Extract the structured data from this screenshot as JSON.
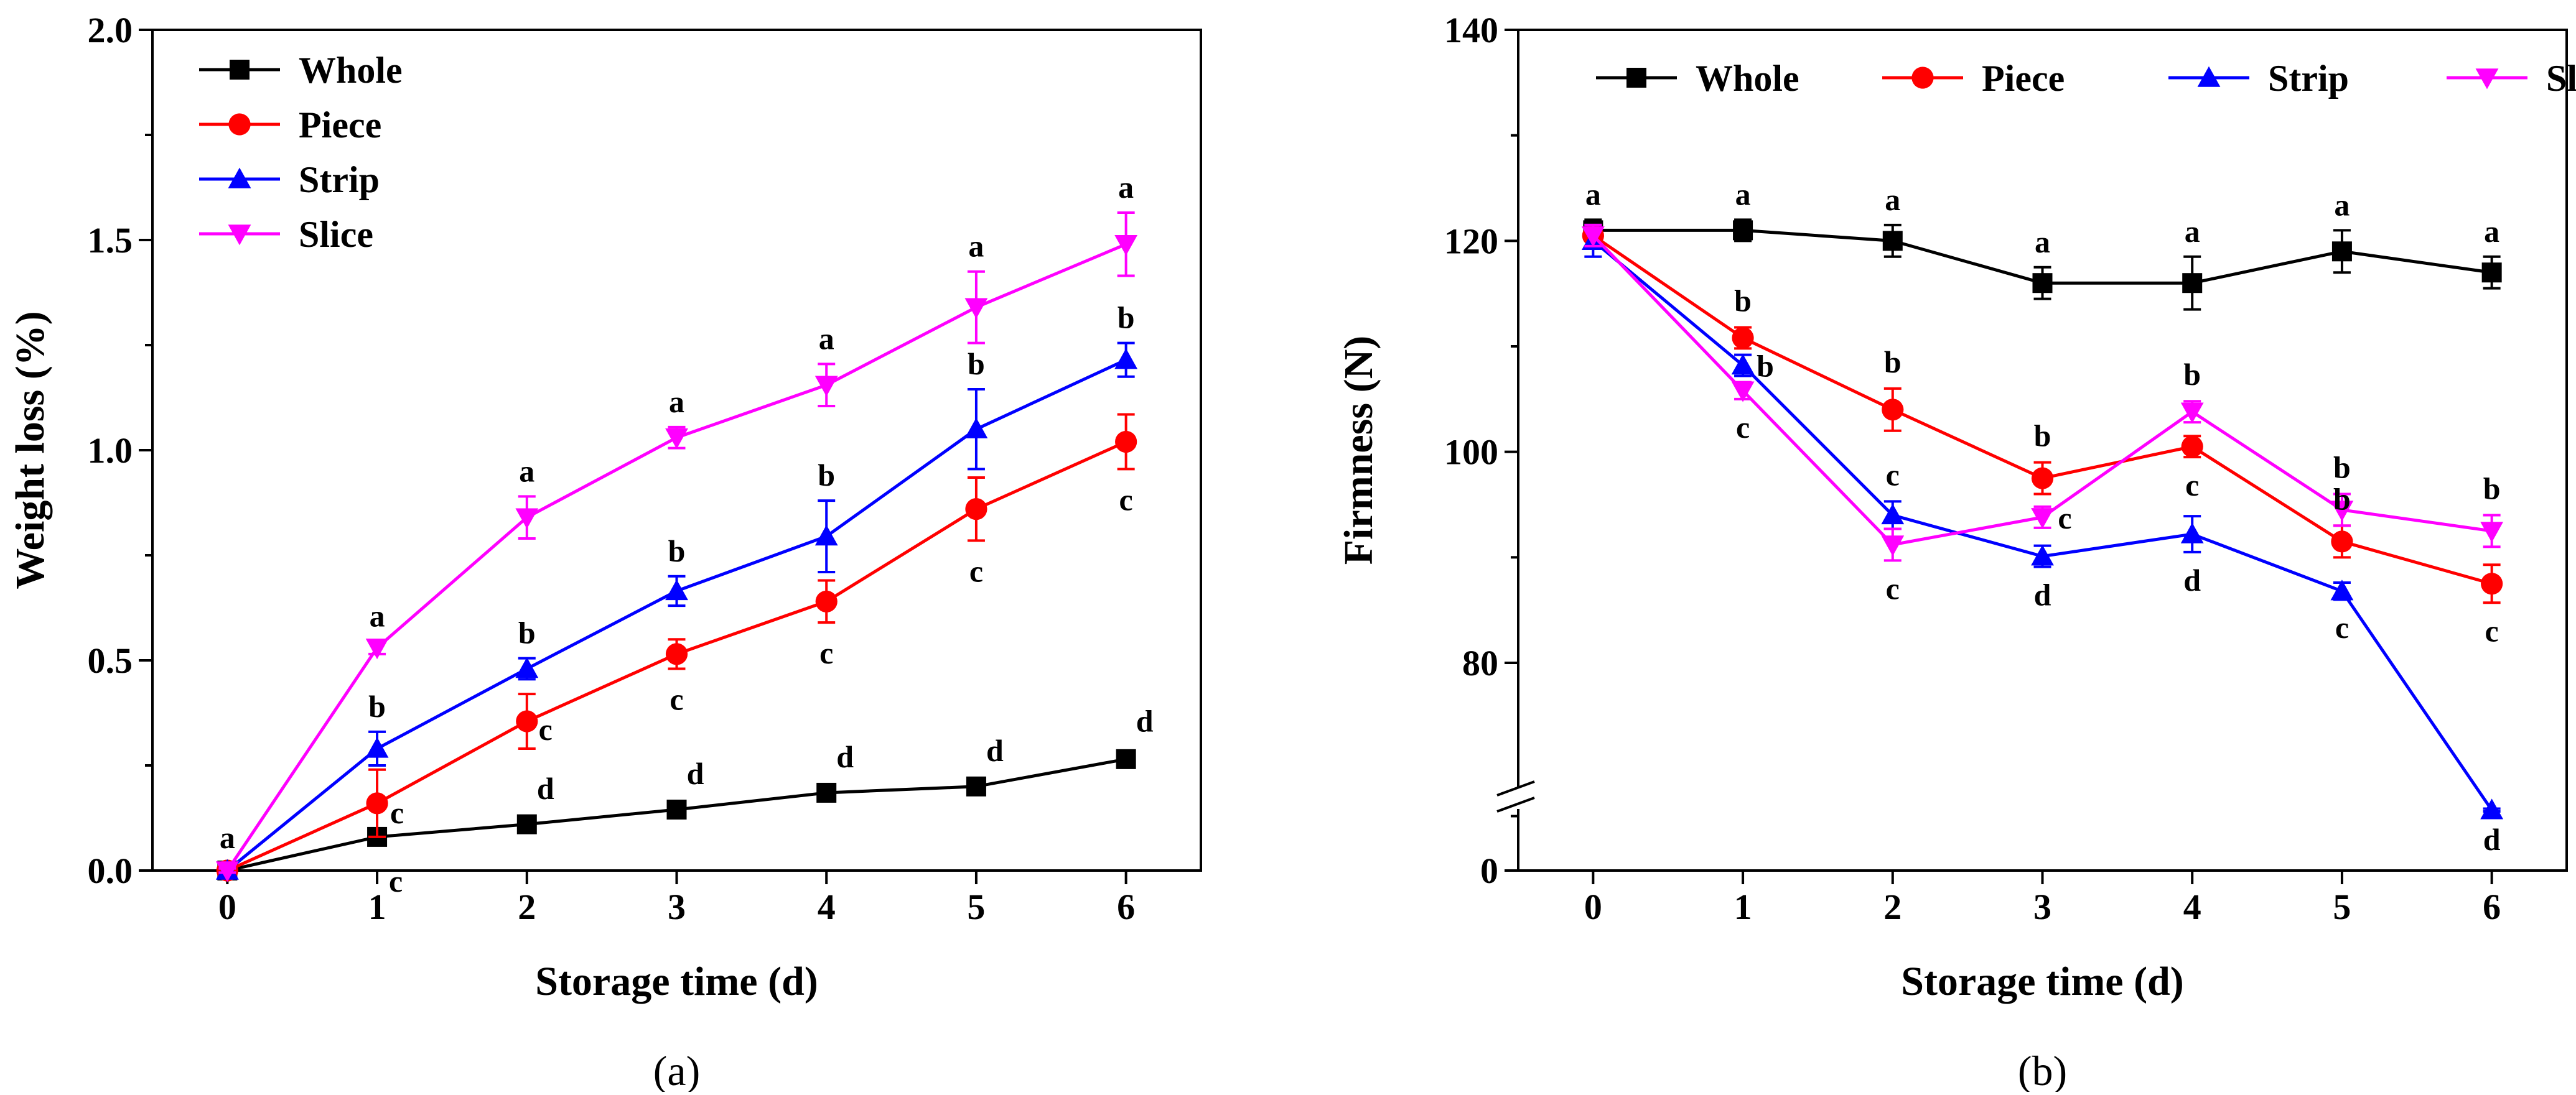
{
  "chart_data": [
    {
      "type": "line",
      "panel_label": "(a)",
      "xlabel": "Storage time (d)",
      "ylabel": "Weight loss (%)",
      "x": [
        0,
        1,
        2,
        3,
        4,
        5,
        6
      ],
      "xlim": [
        -0.5,
        6.5
      ],
      "ylim": [
        0,
        2.0
      ],
      "yticks": [
        "0.0",
        "0.5",
        "1.0",
        "1.5",
        "2.0"
      ],
      "xticks": [
        "0",
        "1",
        "2",
        "3",
        "4",
        "5",
        "6"
      ],
      "legend_position": "top-left",
      "legend_layout": "vertical",
      "series": [
        {
          "name": "Whole",
          "color": "#000000",
          "marker": "square",
          "values": [
            0,
            0.08,
            0.11,
            0.145,
            0.185,
            0.2,
            0.265
          ],
          "errors": [
            0.005,
            0.01,
            0.01,
            0.01,
            0.01,
            0.01,
            0.015
          ],
          "letters": [
            "",
            "c",
            "d",
            "d",
            "d",
            "d",
            "d"
          ]
        },
        {
          "name": "Piece",
          "color": "#ff0000",
          "marker": "circle",
          "values": [
            0,
            0.16,
            0.355,
            0.515,
            0.64,
            0.86,
            1.02
          ],
          "errors": [
            0.005,
            0.08,
            0.065,
            0.035,
            0.05,
            0.075,
            0.065
          ],
          "letters": [
            "",
            "c",
            "c",
            "c",
            "c",
            "c",
            "c"
          ]
        },
        {
          "name": "Strip",
          "color": "#0000ff",
          "marker": "triangle-up",
          "values": [
            0,
            0.29,
            0.48,
            0.665,
            0.795,
            1.05,
            1.215
          ],
          "errors": [
            0.005,
            0.04,
            0.025,
            0.035,
            0.085,
            0.095,
            0.04
          ],
          "letters": [
            "",
            "b",
            "b",
            "b",
            "b",
            "b",
            "b"
          ]
        },
        {
          "name": "Slice",
          "color": "#ff00ff",
          "marker": "triangle-down",
          "values": [
            0,
            0.53,
            0.84,
            1.03,
            1.155,
            1.34,
            1.49
          ],
          "errors": [
            0.005,
            0.015,
            0.05,
            0.025,
            0.05,
            0.085,
            0.075
          ],
          "letters": [
            "a",
            "a",
            "a",
            "a",
            "a",
            "a",
            "a"
          ]
        }
      ]
    },
    {
      "type": "line",
      "panel_label": "(b)",
      "xlabel": "Storage time (d)",
      "ylabel": "Firmness (N)",
      "x": [
        0,
        1,
        2,
        3,
        4,
        5,
        6
      ],
      "xlim": [
        -0.5,
        6.5
      ],
      "ylim": [
        0,
        140
      ],
      "axis_break": [
        0,
        80
      ],
      "yticks": [
        "0",
        "80",
        "100",
        "120",
        "140"
      ],
      "xticks": [
        "0",
        "1",
        "2",
        "3",
        "4",
        "5",
        "6"
      ],
      "legend_position": "top",
      "legend_layout": "horizontal",
      "series": [
        {
          "name": "Whole",
          "color": "#000000",
          "marker": "square",
          "values": [
            121,
            121,
            120,
            116,
            116,
            119,
            117
          ],
          "errors": [
            1.0,
            1.0,
            1.5,
            1.5,
            2.5,
            2.0,
            1.5
          ],
          "letters": [
            "a",
            "a",
            "a",
            "a",
            "a",
            "a",
            "a"
          ]
        },
        {
          "name": "Piece",
          "color": "#ff0000",
          "marker": "circle",
          "values": [
            120.5,
            110.8,
            104,
            97.5,
            100.5,
            91.5,
            87.5
          ],
          "errors": [
            1.0,
            1.0,
            2.0,
            1.5,
            1.0,
            1.5,
            1.8
          ],
          "letters": [
            "",
            "b",
            "b",
            "b",
            "c",
            "b",
            "c"
          ]
        },
        {
          "name": "Strip",
          "color": "#0000ff",
          "marker": "triangle-up",
          "values": [
            120,
            108.2,
            94,
            90.1,
            92.2,
            86.8,
            77.8
          ],
          "errors": [
            1.5,
            1.0,
            1.3,
            1.0,
            1.7,
            0.8,
            1.8
          ],
          "letters": [
            "",
            "b",
            "c",
            "d",
            "d",
            "c",
            "d"
          ]
        },
        {
          "name": "Slice",
          "color": "#ff00ff",
          "marker": "triangle-down",
          "values": [
            120.5,
            105.8,
            91.2,
            93.8,
            103.8,
            94.5,
            92.5
          ],
          "errors": [
            1.0,
            0.8,
            1.5,
            1.0,
            1.0,
            1.5,
            1.5
          ],
          "letters": [
            "",
            "c",
            "c",
            "c",
            "b",
            "b",
            "b"
          ]
        }
      ]
    }
  ]
}
